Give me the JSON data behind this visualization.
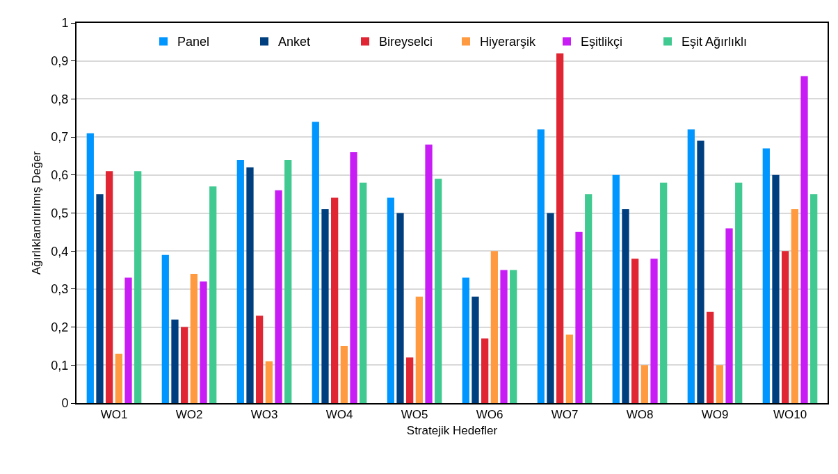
{
  "chart_data": {
    "type": "bar",
    "xlabel": "Stratejik Hedefler",
    "ylabel": "Ağırlıklandırılmış Değer",
    "categories": [
      "WO1",
      "WO2",
      "WO3",
      "WO4",
      "WO5",
      "WO6",
      "WO7",
      "WO8",
      "WO9",
      "WO10"
    ],
    "series": [
      {
        "name": "Panel",
        "color": "#0096ff",
        "values": [
          0.71,
          0.39,
          0.64,
          0.74,
          0.54,
          0.33,
          0.72,
          0.6,
          0.72,
          0.67
        ]
      },
      {
        "name": "Anket",
        "color": "#003f7f",
        "values": [
          0.55,
          0.22,
          0.62,
          0.51,
          0.5,
          0.28,
          0.5,
          0.51,
          0.69,
          0.6
        ]
      },
      {
        "name": "Bireyselci",
        "color": "#e02533",
        "values": [
          0.61,
          0.2,
          0.23,
          0.54,
          0.12,
          0.17,
          0.92,
          0.38,
          0.24,
          0.4
        ]
      },
      {
        "name": "Hiyerarşik",
        "color": "#ff9a40",
        "values": [
          0.13,
          0.34,
          0.11,
          0.15,
          0.28,
          0.4,
          0.18,
          0.1,
          0.1,
          0.51
        ]
      },
      {
        "name": "Eşitlikçi",
        "color": "#c81ef5",
        "values": [
          0.33,
          0.32,
          0.56,
          0.66,
          0.68,
          0.35,
          0.45,
          0.38,
          0.46,
          0.86
        ]
      },
      {
        "name": "Eşit Ağırlıklı",
        "color": "#40c990",
        "values": [
          0.61,
          0.57,
          0.64,
          0.58,
          0.59,
          0.35,
          0.55,
          0.58,
          0.58,
          0.55
        ]
      }
    ],
    "ylim": [
      0,
      1
    ],
    "yticks": [
      0,
      {
        "value": 0.1,
        "label": "0,1"
      },
      {
        "value": 0.2,
        "label": "0,2"
      },
      {
        "value": 0.3,
        "label": "0,3"
      },
      {
        "value": 0.4,
        "label": "0,4"
      },
      {
        "value": 0.5,
        "label": "0,5"
      },
      {
        "value": 0.6,
        "label": "0,6"
      },
      {
        "value": 0.7,
        "label": "0,7"
      },
      {
        "value": 0.8,
        "label": "0,8"
      },
      {
        "value": 0.9,
        "label": "0,9"
      },
      1
    ],
    "grid": "y",
    "legend": "top"
  }
}
